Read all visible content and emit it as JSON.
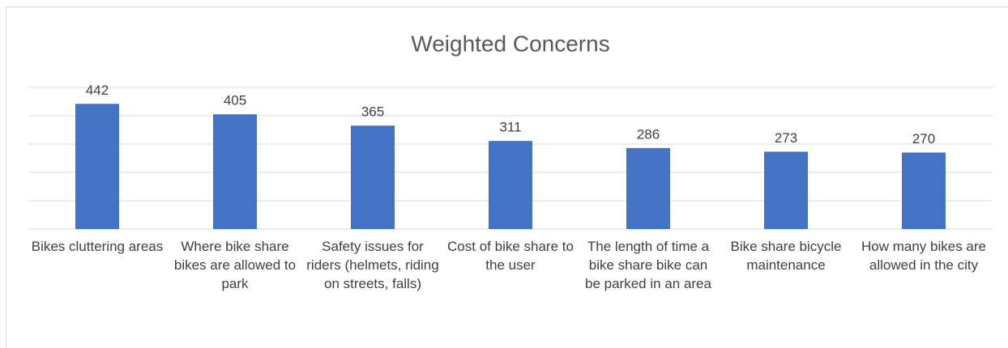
{
  "chart_data": {
    "type": "bar",
    "title": "Weighted Concerns",
    "categories": [
      "Bikes cluttering areas",
      "Where bike share bikes are allowed to park",
      "Safety issues for riders (helmets, riding on streets, falls)",
      "Cost of bike share to the user",
      "The length of time a bike share bike can be parked in an area",
      "Bike share bicycle maintenance",
      "How many bikes are allowed in the city"
    ],
    "values": [
      442,
      405,
      365,
      311,
      286,
      273,
      270
    ],
    "color": "#4472c4",
    "ylim": [
      0,
      500
    ],
    "yticks": [
      0,
      100,
      200,
      300,
      400,
      500
    ],
    "grid": true
  }
}
